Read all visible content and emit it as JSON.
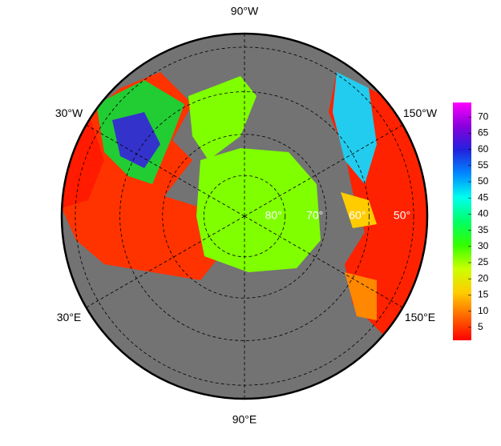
{
  "map": {
    "projection": "north-polar-stereographic",
    "longitude_labels": [
      {
        "value": -90,
        "label": "90°W"
      },
      {
        "value": -30,
        "label": "30°W"
      },
      {
        "value": -150,
        "label": "150°W"
      },
      {
        "value": 30,
        "label": "30°E"
      },
      {
        "value": 150,
        "label": "150°E"
      },
      {
        "value": 90,
        "label": "90°E"
      }
    ],
    "latitude_labels": [
      {
        "value": 80,
        "label": "80°"
      },
      {
        "value": 70,
        "label": "70°"
      },
      {
        "value": 60,
        "label": "60°"
      },
      {
        "value": 50,
        "label": "50°"
      }
    ],
    "colorbar": {
      "range": [
        1,
        74.5
      ],
      "ticks": [
        5,
        10,
        15,
        20,
        25,
        30,
        35,
        40,
        45,
        50,
        55,
        60,
        65,
        70
      ],
      "colors": [
        "#ff0000",
        "#ff6600",
        "#ffcc00",
        "#ccff00",
        "#33ff00",
        "#00ff66",
        "#00ffee",
        "#0088ff",
        "#2222dd",
        "#8800dd",
        "#ff00ff"
      ]
    }
  }
}
